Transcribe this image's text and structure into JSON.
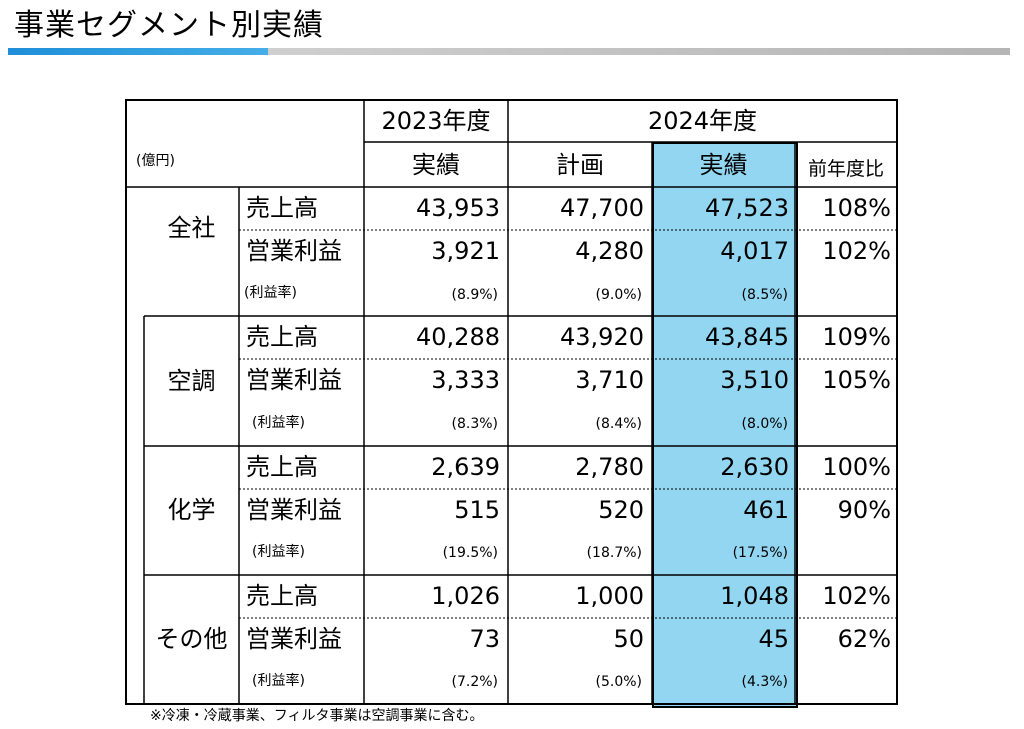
{
  "page": {
    "title": "事業セグメント別実績"
  },
  "table": {
    "unit": "(億円)",
    "year_2023": "2023年度",
    "year_2024": "2024年度",
    "col_actual_2023": "実績",
    "col_plan_2024": "計画",
    "col_actual_2024": "実績",
    "col_yoy": "前年度比",
    "label_sales": "売上高",
    "label_profit": "営業利益",
    "label_margin": "(利益率)",
    "segments": [
      {
        "name": "全社",
        "sales": {
          "a2023": "43,953",
          "p2024": "47,700",
          "a2024": "47,523",
          "yoy": "108%"
        },
        "profit": {
          "a2023": "3,921",
          "p2024": "4,280",
          "a2024": "4,017",
          "yoy": "102%"
        },
        "margin": {
          "a2023": "(8.9%)",
          "p2024": "(9.0%)",
          "a2024": "(8.5%)"
        }
      },
      {
        "name": "空調",
        "sales": {
          "a2023": "40,288",
          "p2024": "43,920",
          "a2024": "43,845",
          "yoy": "109%"
        },
        "profit": {
          "a2023": "3,333",
          "p2024": "3,710",
          "a2024": "3,510",
          "yoy": "105%"
        },
        "margin": {
          "a2023": "(8.3%)",
          "p2024": "(8.4%)",
          "a2024": "(8.0%)"
        }
      },
      {
        "name": "化学",
        "sales": {
          "a2023": "2,639",
          "p2024": "2,780",
          "a2024": "2,630",
          "yoy": "100%"
        },
        "profit": {
          "a2023": "515",
          "p2024": "520",
          "a2024": "461",
          "yoy": "90%"
        },
        "margin": {
          "a2023": "(19.5%)",
          "p2024": "(18.7%)",
          "a2024": "(17.5%)"
        }
      },
      {
        "name": "その他",
        "sales": {
          "a2023": "1,026",
          "p2024": "1,000",
          "a2024": "1,048",
          "yoy": "102%"
        },
        "profit": {
          "a2023": "73",
          "p2024": "50",
          "a2024": "45",
          "yoy": "62%"
        },
        "margin": {
          "a2023": "(7.2%)",
          "p2024": "(5.0%)",
          "a2024": "(4.3%)"
        }
      }
    ]
  },
  "footnote": "※冷凍・冷蔵事業、フィルタ事業は空調事業に含む。"
}
